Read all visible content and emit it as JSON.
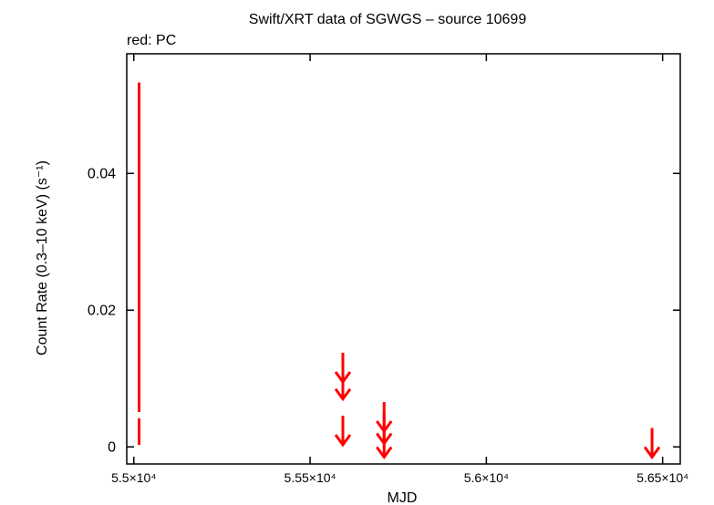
{
  "chart_data": {
    "type": "scatter",
    "title": "Swift/XRT data of SGWGS – source 10699",
    "legend_text": "red: PC",
    "legend_placement": "top-left",
    "xlabel": "MJD",
    "ylabel": "Count Rate (0.3–10 keV) (s⁻¹)",
    "xlim": [
      54980,
      56550
    ],
    "ylim": [
      -0.0025,
      0.0575
    ],
    "x_ticks": [
      {
        "value": 55000,
        "label": "5.5×10⁴"
      },
      {
        "value": 55500,
        "label": "5.55×10⁴"
      },
      {
        "value": 56000,
        "label": "5.6×10⁴"
      },
      {
        "value": 56500,
        "label": "5.65×10⁴"
      }
    ],
    "y_ticks": [
      {
        "value": 0,
        "label": "0"
      },
      {
        "value": 0.02,
        "label": "0.02"
      },
      {
        "value": 0.04,
        "label": "0.04"
      }
    ],
    "grid": false,
    "series": [
      {
        "color": "#ff0000",
        "detections": [
          {
            "x": 55015,
            "y": 0.0055,
            "y_low": 0.0003,
            "y_high": 0.0533
          }
        ],
        "upper_limits": [
          {
            "x": 55593,
            "y": 0.0095
          },
          {
            "x": 55593,
            "y": 0.007
          },
          {
            "x": 55593,
            "y": 0.0003
          },
          {
            "x": 55710,
            "y": 0.0023
          },
          {
            "x": 55710,
            "y": 0.0005
          },
          {
            "x": 55710,
            "y": -0.0015
          },
          {
            "x": 56470,
            "y": -0.0015
          }
        ]
      }
    ]
  }
}
